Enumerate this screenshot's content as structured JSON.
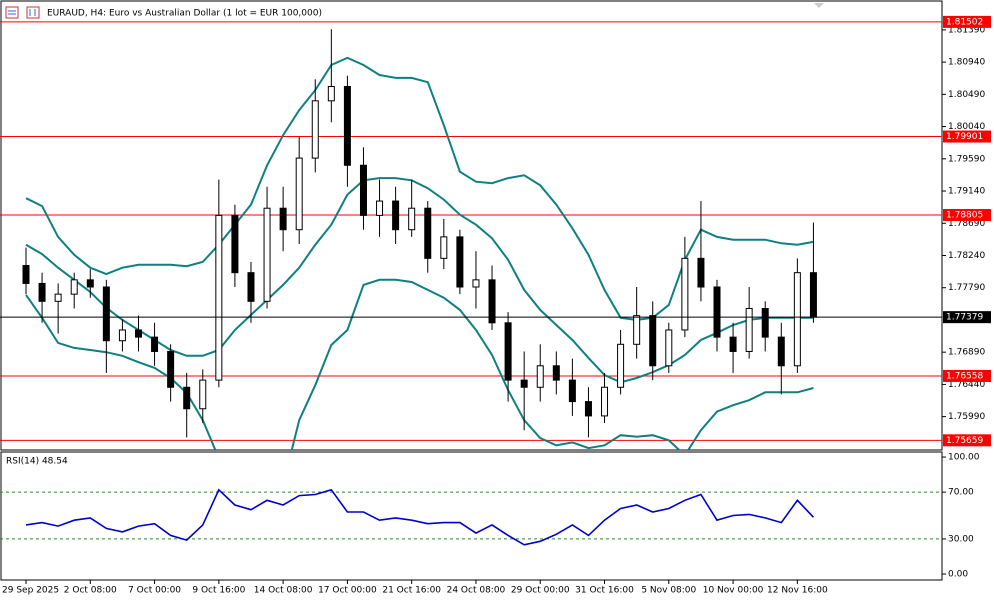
{
  "chart_data": [
    {
      "type": "candlestick",
      "title": "EURAUD, H4:  Euro vs Australian Dollar (1 lot = EUR 100,000)",
      "categories": [
        "29 Sep 2025",
        null,
        null,
        null,
        "2 Oct 08:00",
        null,
        null,
        null,
        "7 Oct 00:00",
        null,
        null,
        null,
        "9 Oct 16:00",
        null,
        null,
        null,
        "14 Oct 08:00",
        null,
        null,
        null,
        "17 Oct 00:00",
        null,
        null,
        null,
        "21 Oct 16:00",
        null,
        null,
        null,
        "24 Oct 08:00",
        null,
        null,
        null,
        "29 Oct 00:00",
        null,
        null,
        null,
        "31 Oct 16:00",
        null,
        null,
        null,
        "5 Nov 08:00",
        null,
        null,
        null,
        "10 Nov 00:00",
        null,
        null,
        null,
        "12 Nov 16:00",
        null
      ],
      "open": [
        1.781,
        1.7785,
        1.776,
        1.777,
        1.779,
        1.778,
        1.7705,
        1.772,
        1.771,
        1.769,
        1.764,
        1.761,
        1.765,
        1.788,
        1.78,
        1.776,
        1.789,
        1.786,
        1.796,
        1.804,
        1.806,
        1.795,
        1.788,
        1.79,
        1.786,
        1.789,
        1.782,
        1.785,
        1.778,
        1.779,
        1.773,
        1.765,
        1.764,
        1.767,
        1.765,
        1.762,
        1.76,
        1.764,
        1.77,
        1.774,
        1.767,
        1.772,
        1.782,
        1.778,
        1.771,
        1.769,
        1.775,
        1.771,
        1.767,
        1.78
      ],
      "high": [
        1.7835,
        1.78,
        1.7785,
        1.78,
        1.7805,
        1.779,
        1.7735,
        1.774,
        1.773,
        1.77,
        1.766,
        1.7665,
        1.793,
        1.7895,
        1.7815,
        1.792,
        1.792,
        1.799,
        1.807,
        1.814,
        1.8075,
        1.7975,
        1.793,
        1.792,
        1.793,
        1.79,
        1.7875,
        1.786,
        1.783,
        1.781,
        1.7745,
        1.769,
        1.77,
        1.769,
        1.768,
        1.764,
        1.766,
        1.772,
        1.778,
        1.776,
        1.773,
        1.785,
        1.79,
        1.779,
        1.773,
        1.778,
        1.776,
        1.773,
        1.782,
        1.787
      ],
      "low": [
        1.777,
        1.773,
        1.7715,
        1.775,
        1.7765,
        1.766,
        1.769,
        1.769,
        1.767,
        1.762,
        1.757,
        1.759,
        1.764,
        1.778,
        1.773,
        1.775,
        1.783,
        1.784,
        1.794,
        1.801,
        1.792,
        1.786,
        1.785,
        1.784,
        1.785,
        1.78,
        1.7805,
        1.777,
        1.775,
        1.772,
        1.762,
        1.758,
        1.762,
        1.763,
        1.76,
        1.757,
        1.759,
        1.763,
        1.768,
        1.765,
        1.766,
        1.771,
        1.776,
        1.769,
        1.766,
        1.768,
        1.769,
        1.763,
        1.766,
        1.773
      ],
      "close": [
        1.7785,
        1.776,
        1.777,
        1.779,
        1.778,
        1.7705,
        1.772,
        1.771,
        1.769,
        1.764,
        1.761,
        1.765,
        1.788,
        1.78,
        1.776,
        1.789,
        1.786,
        1.796,
        1.804,
        1.806,
        1.795,
        1.788,
        1.79,
        1.786,
        1.789,
        1.782,
        1.785,
        1.778,
        1.779,
        1.773,
        1.765,
        1.764,
        1.767,
        1.765,
        1.762,
        1.76,
        1.764,
        1.77,
        1.774,
        1.767,
        1.772,
        1.782,
        1.778,
        1.771,
        1.769,
        1.775,
        1.771,
        1.767,
        1.78,
        1.77379
      ],
      "band_color": "#0e8080",
      "upper": [
        1.7904,
        1.7893,
        1.785,
        1.7825,
        1.7807,
        1.7798,
        1.7807,
        1.7811,
        1.7811,
        1.7811,
        1.7809,
        1.7815,
        1.7839,
        1.7867,
        1.7895,
        1.795,
        1.7992,
        1.8027,
        1.8055,
        1.809,
        1.81,
        1.809,
        1.8076,
        1.8072,
        1.8072,
        1.8066,
        1.8006,
        1.7941,
        1.7927,
        1.7925,
        1.7932,
        1.7936,
        1.7922,
        1.7895,
        1.7862,
        1.7825,
        1.7776,
        1.7737,
        1.7734,
        1.7737,
        1.7755,
        1.7818,
        1.786,
        1.785,
        1.7846,
        1.7846,
        1.7846,
        1.7841,
        1.7839,
        1.7843
      ],
      "middle": [
        1.7839,
        1.7826,
        1.7807,
        1.779,
        1.7773,
        1.7751,
        1.7734,
        1.772,
        1.7706,
        1.7692,
        1.7684,
        1.7684,
        1.7692,
        1.772,
        1.7741,
        1.7762,
        1.7783,
        1.7807,
        1.7839,
        1.7867,
        1.7909,
        1.7929,
        1.7932,
        1.7932,
        1.7929,
        1.7918,
        1.7902,
        1.7881,
        1.7867,
        1.7848,
        1.7818,
        1.7776,
        1.7748,
        1.7727,
        1.7706,
        1.7681,
        1.7657,
        1.7647,
        1.7653,
        1.7661,
        1.7671,
        1.7685,
        1.7706,
        1.7716,
        1.7727,
        1.7734,
        1.7737,
        1.7737,
        1.7737,
        1.7737
      ],
      "lower": [
        1.7769,
        1.7737,
        1.7702,
        1.7695,
        1.7692,
        1.7689,
        1.7684,
        1.7675,
        1.7667,
        1.7653,
        1.7632,
        1.7594,
        1.7541,
        1.7497,
        1.7476,
        1.7483,
        1.7504,
        1.7594,
        1.7643,
        1.7699,
        1.772,
        1.7783,
        1.779,
        1.779,
        1.7787,
        1.7776,
        1.7765,
        1.7748,
        1.772,
        1.7685,
        1.7636,
        1.7594,
        1.7569,
        1.7559,
        1.7563,
        1.7555,
        1.7559,
        1.7573,
        1.7571,
        1.7573,
        1.7566,
        1.7545,
        1.758,
        1.7606,
        1.7615,
        1.7622,
        1.7633,
        1.7633,
        1.7633,
        1.7639
      ],
      "ylim": [
        1.75524,
        1.81612
      ],
      "yticks": [
        {
          "value": 1.8139,
          "label": "1.81390"
        },
        {
          "value": 1.8094,
          "label": "1.80940"
        },
        {
          "value": 1.8049,
          "label": "1.80490"
        },
        {
          "value": 1.8004,
          "label": "1.80040"
        },
        {
          "value": 1.7959,
          "label": "1.79590"
        },
        {
          "value": 1.7914,
          "label": "1.79140"
        },
        {
          "value": 1.7869,
          "label": "1.78690"
        },
        {
          "value": 1.7824,
          "label": "1.78240"
        },
        {
          "value": 1.7779,
          "label": "1.77790"
        },
        {
          "value": 1.7689,
          "label": "1.76890"
        },
        {
          "value": 1.7644,
          "label": "1.76440"
        },
        {
          "value": 1.7599,
          "label": "1.75990"
        }
      ],
      "levels": [
        1.81502,
        1.79901,
        1.78805,
        1.76558,
        1.75659
      ],
      "level_color": "#ff0000"
    },
    {
      "type": "line",
      "title": "RSI(14) 48.54",
      "color": "#0000cd",
      "values": [
        42,
        44,
        41,
        46,
        48,
        39,
        36,
        41,
        43,
        33,
        29,
        42,
        72,
        59,
        55,
        63,
        59,
        67,
        68,
        72,
        53,
        53,
        46,
        48,
        46,
        43,
        44,
        44,
        35,
        42,
        33,
        25,
        28,
        34,
        42,
        33,
        46,
        56,
        59,
        53,
        56,
        63,
        68,
        46,
        50,
        51,
        48,
        44,
        63,
        48.54
      ],
      "ylim": [
        -5.1,
        104.3
      ],
      "yticks": [
        {
          "value": 100,
          "label": "100.00"
        },
        {
          "value": 70,
          "label": "70.00"
        },
        {
          "value": 30,
          "label": "30.00"
        },
        {
          "value": 0,
          "label": "0.00"
        }
      ],
      "levels": [
        70,
        30
      ]
    }
  ]
}
